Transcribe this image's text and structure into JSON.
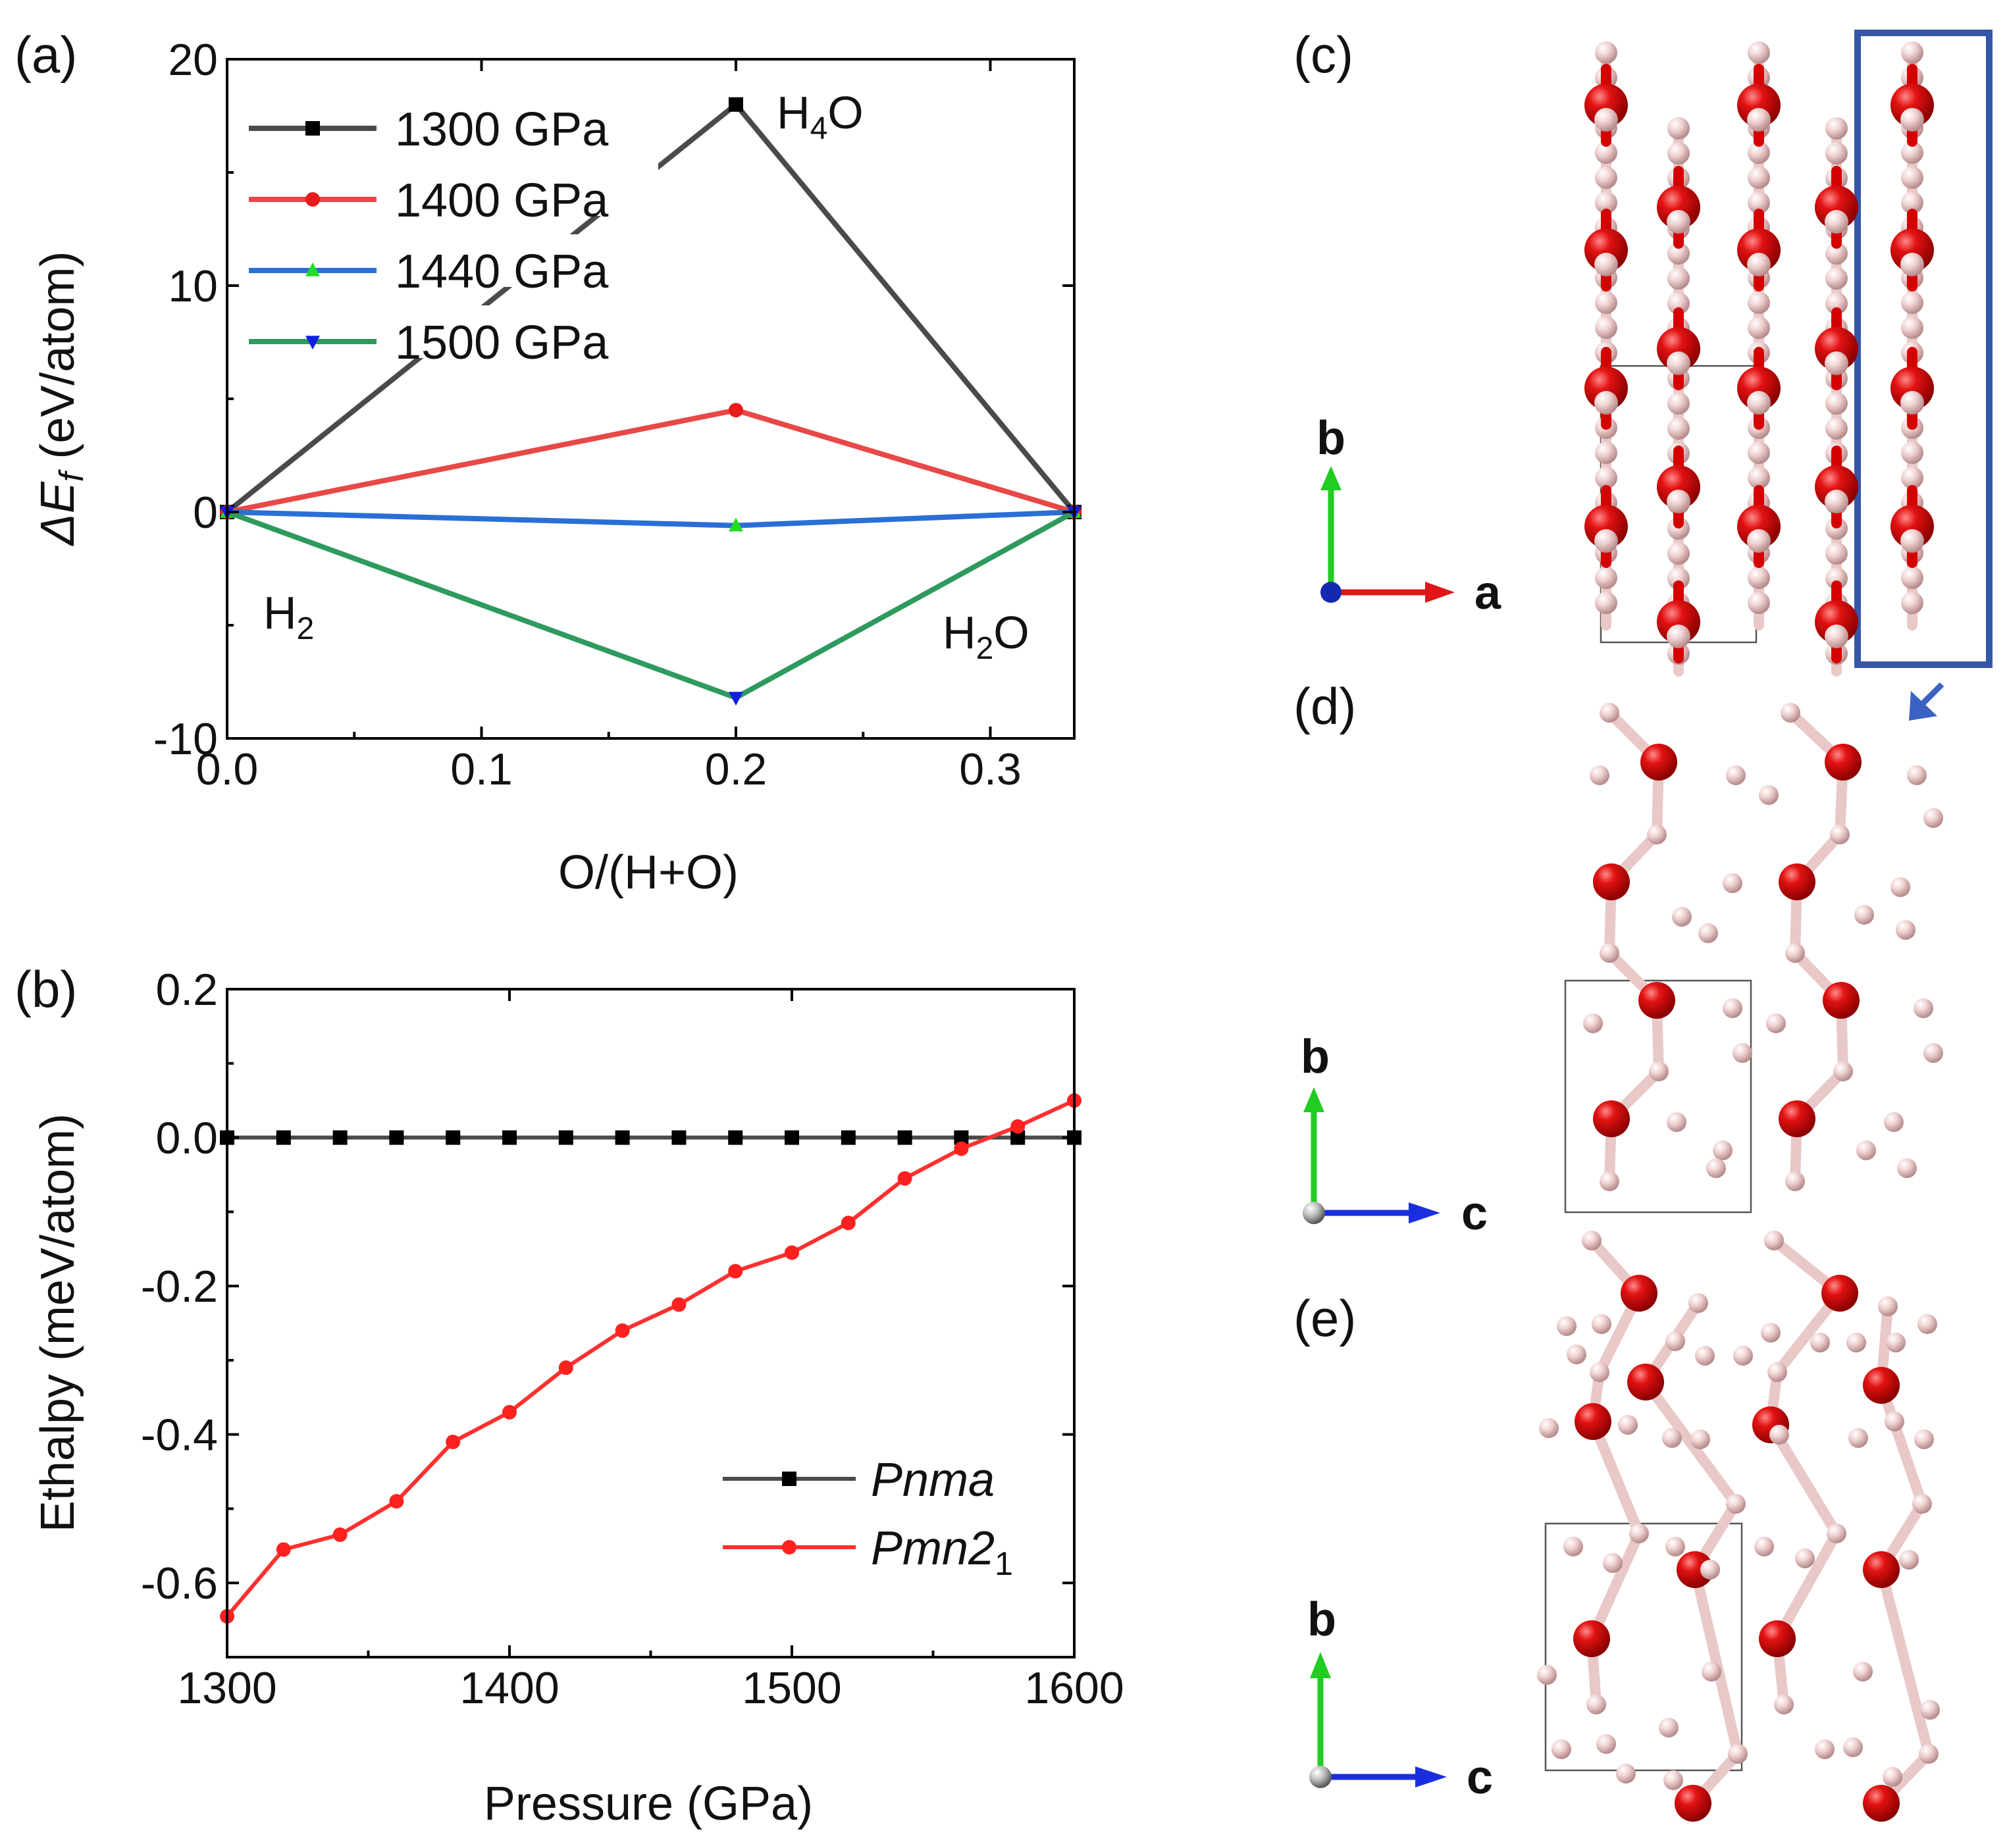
{
  "chart_data": [
    {
      "panel": "(a)",
      "type": "line",
      "xlabel": "O/(H+O)",
      "ylabel": "ΔE_f (eV/atom)",
      "xlim": [
        0,
        0.333
      ],
      "ylim": [
        -10,
        20
      ],
      "xticks": [
        "0.0",
        "0.1",
        "0.2",
        "0.3"
      ],
      "xtick_values": [
        0.0,
        0.1,
        0.2,
        0.3
      ],
      "yticks": [
        "-10",
        "0",
        "10",
        "20"
      ],
      "ytick_values": [
        -10,
        0,
        10,
        20
      ],
      "x": [
        0.0,
        0.2,
        0.333
      ],
      "series": [
        {
          "name": "1300 GPa",
          "values": [
            0,
            18,
            0
          ],
          "color": "#4a4a4a",
          "marker": "square",
          "marker_color": "#000000"
        },
        {
          "name": "1400 GPa",
          "values": [
            0,
            4.5,
            0
          ],
          "color": "#e84848",
          "marker": "circle",
          "marker_color": "#e81c1c"
        },
        {
          "name": "1440 GPa",
          "values": [
            0,
            -0.6,
            0
          ],
          "color": "#2a6fd6",
          "marker": "triangle-up",
          "marker_color": "#22dd22"
        },
        {
          "name": "1500 GPa",
          "values": [
            0,
            -8.2,
            0
          ],
          "color": "#2e9a5e",
          "marker": "triangle-down",
          "marker_color": "#1020e0"
        }
      ],
      "annotations": [
        {
          "text": "H",
          "sub": "4",
          "after": "O",
          "at_x": 0.2,
          "at_y": 18
        },
        {
          "text": "H",
          "sub": "2",
          "after": "",
          "at_x": 0.0,
          "at_y": -4
        },
        {
          "text": "H",
          "sub": "2",
          "after": "O",
          "at_x": 0.333,
          "at_y": -5
        }
      ],
      "legend": "top-left"
    },
    {
      "panel": "(b)",
      "type": "line",
      "xlabel": "Pressure (GPa)",
      "ylabel": "Ethalpy (meV/atom)",
      "xlim": [
        1300,
        1600
      ],
      "ylim": [
        -0.7,
        0.2
      ],
      "xticks": [
        "1300",
        "1400",
        "1500",
        "1600"
      ],
      "xtick_values": [
        1300,
        1400,
        1500,
        1600
      ],
      "yticks": [
        "0.2",
        "0.0",
        "-0.2",
        "-0.4",
        "-0.6"
      ],
      "ytick_values": [
        0.2,
        0.0,
        -0.2,
        -0.4,
        -0.6
      ],
      "x": [
        1300,
        1320,
        1340,
        1360,
        1380,
        1400,
        1420,
        1440,
        1460,
        1480,
        1500,
        1520,
        1540,
        1560,
        1580,
        1600
      ],
      "series": [
        {
          "name": "Pnma",
          "values": [
            0,
            0,
            0,
            0,
            0,
            0,
            0,
            0,
            0,
            0,
            0,
            0,
            0,
            0,
            0,
            0
          ],
          "color": "#4a4a4a",
          "marker": "square",
          "marker_color": "#000000"
        },
        {
          "name": "Pmn2",
          "sub": "1",
          "values": [
            -0.645,
            -0.555,
            -0.535,
            -0.49,
            -0.41,
            -0.37,
            -0.31,
            -0.26,
            -0.225,
            -0.18,
            -0.155,
            -0.115,
            -0.055,
            -0.015,
            0.015,
            0.05
          ],
          "color": "#ff3030",
          "marker": "circle",
          "marker_color": "#ff2020"
        }
      ],
      "legend": "bottom-right"
    }
  ],
  "structures": {
    "c": {
      "panel": "(c)",
      "axis_vertical": "b",
      "axis_horizontal": "a"
    },
    "d": {
      "panel": "(d)",
      "axis_vertical": "b",
      "axis_horizontal": "c"
    },
    "e": {
      "panel": "(e)",
      "axis_vertical": "b",
      "axis_horizontal": "c"
    }
  }
}
